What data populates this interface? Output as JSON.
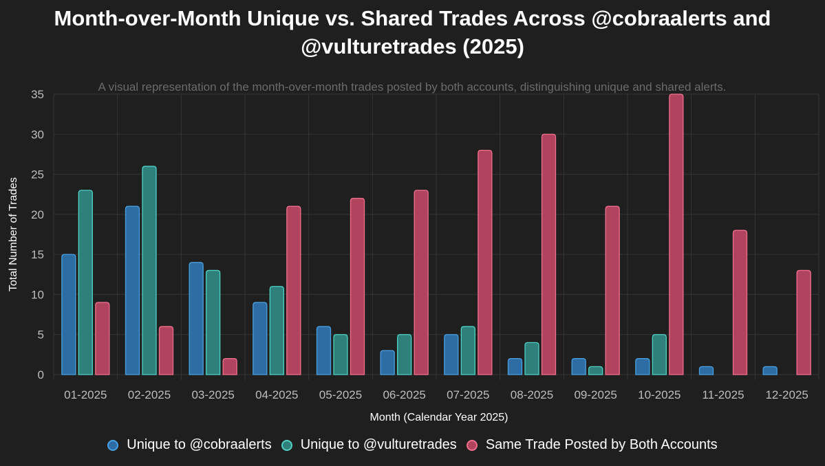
{
  "chart_data": {
    "type": "bar",
    "title": "Month-over-Month Unique vs. Shared Trades Across @cobraalerts and @vulturetrades (2025)",
    "subtitle": "A visual representation of the month-over-month trades posted by both accounts, distinguishing unique and shared alerts.",
    "xlabel": "Month (Calendar Year 2025)",
    "ylabel": "Total Number of Trades",
    "ylim": [
      0,
      35
    ],
    "yticks": [
      0,
      5,
      10,
      15,
      20,
      25,
      30,
      35
    ],
    "grid": true,
    "legend_position": "bottom",
    "categories": [
      "01-2025",
      "02-2025",
      "03-2025",
      "04-2025",
      "05-2025",
      "06-2025",
      "07-2025",
      "08-2025",
      "09-2025",
      "10-2025",
      "11-2025",
      "12-2025"
    ],
    "series": [
      {
        "name": "Unique to @cobraalerts",
        "fill": "#2e6da4",
        "stroke": "#4a9fe0",
        "values": [
          15,
          21,
          14,
          9,
          6,
          3,
          5,
          2,
          2,
          2,
          1,
          1
        ]
      },
      {
        "name": "Unique to @vulturetrades",
        "fill": "#2f7f7a",
        "stroke": "#4fd1c5",
        "values": [
          23,
          26,
          13,
          11,
          5,
          5,
          6,
          4,
          1,
          5,
          0,
          0
        ]
      },
      {
        "name": "Same Trade Posted by Both Accounts",
        "fill": "#b0445e",
        "stroke": "#f0708c",
        "values": [
          9,
          6,
          2,
          21,
          22,
          23,
          28,
          30,
          21,
          35,
          18,
          13
        ]
      }
    ]
  }
}
